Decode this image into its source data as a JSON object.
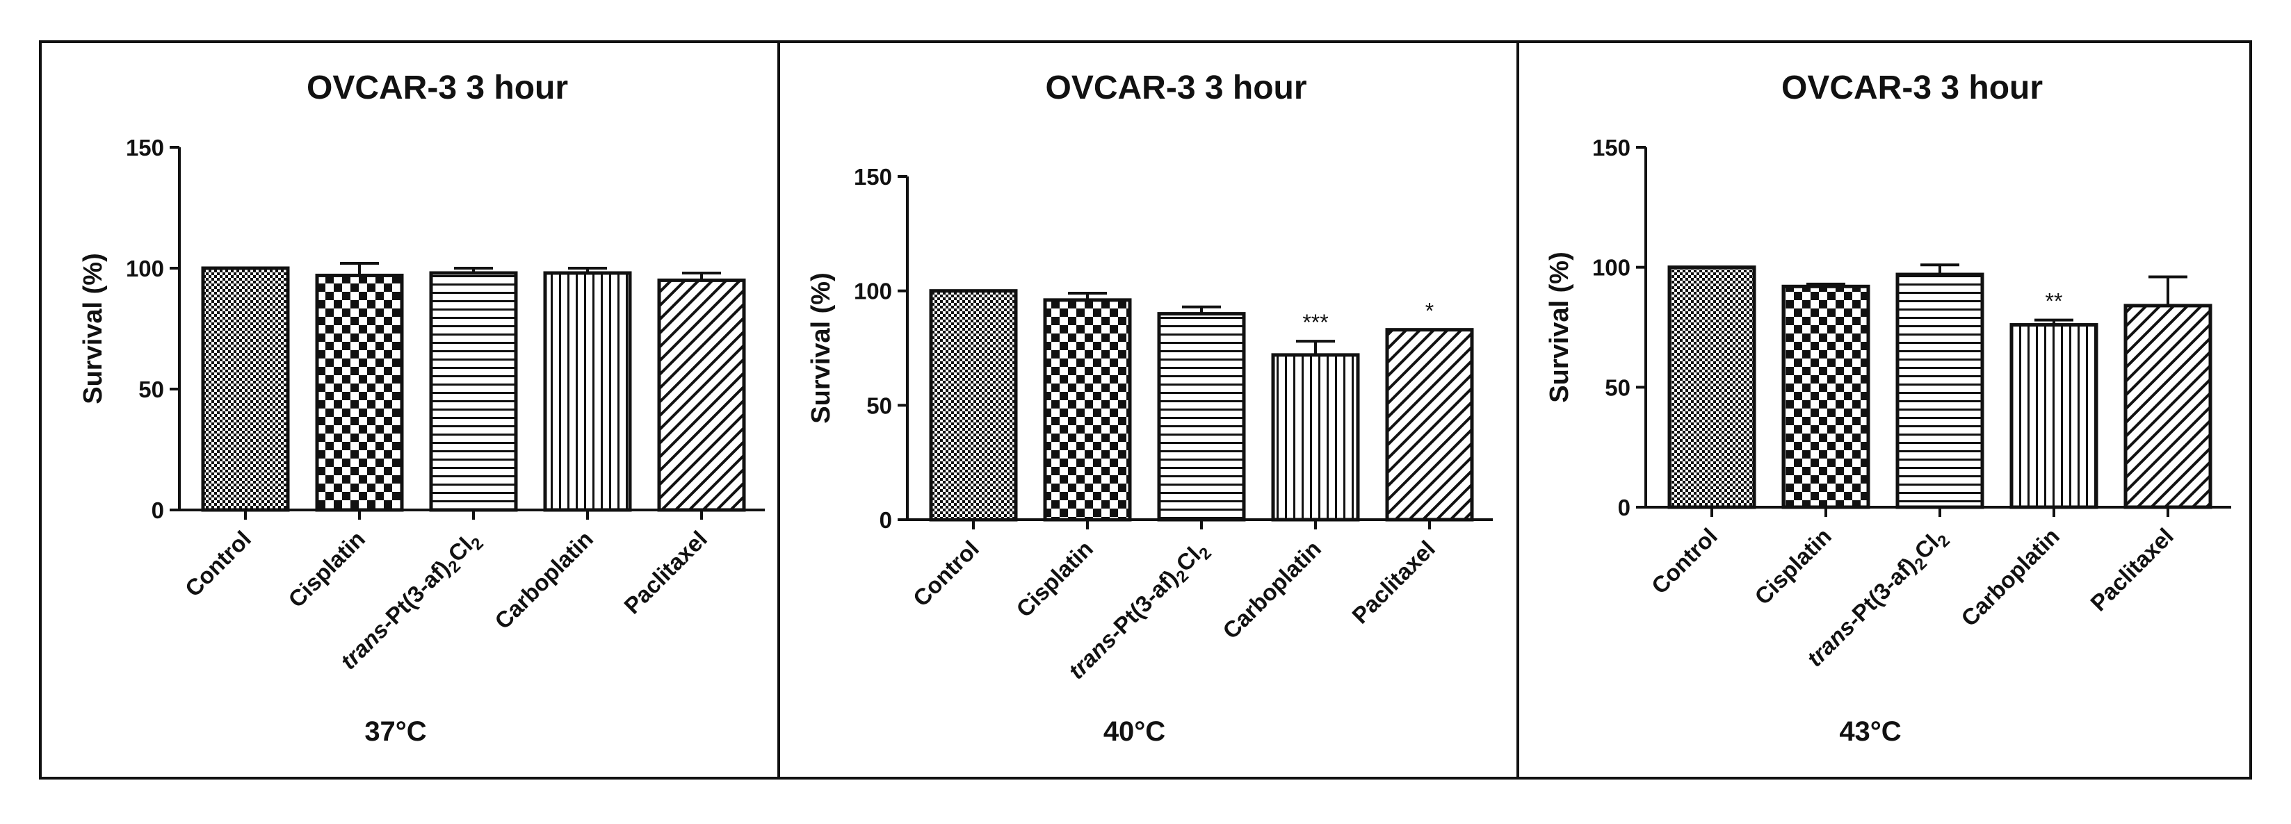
{
  "chart_data": [
    {
      "type": "bar",
      "title": "OVCAR-3 3 hour",
      "condition": "37°C",
      "xlabel": "",
      "ylabel": "Survival (%)",
      "ylim": [
        0,
        150
      ],
      "yticks": [
        "0",
        "50",
        "100",
        "150"
      ],
      "categories": [
        "Control",
        "Cisplatin",
        "trans-Pt(3-af)2Cl2",
        "Carboplatin",
        "Paclitaxel"
      ],
      "category_parts": [
        {
          "main": "Control"
        },
        {
          "main": "Cisplatin"
        },
        {
          "italic": "trans",
          "main": "-Pt(3-af)",
          "sub1": "2",
          "mid": "Cl",
          "sub2": "2"
        },
        {
          "main": "Carboplatin"
        },
        {
          "main": "Paclitaxel"
        }
      ],
      "values": [
        100,
        97,
        98,
        98,
        95
      ],
      "errors": [
        0,
        5,
        2,
        2,
        3
      ],
      "significance": [
        "",
        "",
        "",
        "",
        ""
      ],
      "patterns": [
        "dense-check",
        "checker",
        "horizontal",
        "vertical",
        "diagonal"
      ]
    },
    {
      "type": "bar",
      "title": "OVCAR-3 3 hour",
      "condition": "40°C",
      "xlabel": "",
      "ylabel": "Survival (%)",
      "ylim": [
        0,
        150
      ],
      "yticks": [
        "0",
        "50",
        "100",
        "150"
      ],
      "categories": [
        "Control",
        "Cisplatin",
        "trans-Pt(3-af)2Cl2",
        "Carboplatin",
        "Paclitaxel"
      ],
      "category_parts": [
        {
          "main": "Control"
        },
        {
          "main": "Cisplatin"
        },
        {
          "italic": "trans",
          "main": "-Pt(3-af)",
          "sub1": "2",
          "mid": "Cl",
          "sub2": "2"
        },
        {
          "main": "Carboplatin"
        },
        {
          "main": "Paclitaxel"
        }
      ],
      "values": [
        100,
        96,
        90,
        72,
        83
      ],
      "errors": [
        0,
        3,
        3,
        6,
        0
      ],
      "significance": [
        "",
        "",
        "",
        "***",
        "*"
      ],
      "patterns": [
        "dense-check",
        "checker",
        "horizontal",
        "vertical",
        "diagonal"
      ]
    },
    {
      "type": "bar",
      "title": "OVCAR-3 3 hour",
      "condition": "43°C",
      "xlabel": "",
      "ylabel": "Survival (%)",
      "ylim": [
        0,
        150
      ],
      "yticks": [
        "0",
        "50",
        "100",
        "150"
      ],
      "categories": [
        "Control",
        "Cisplatin",
        "trans-Pt(3-af)2Cl2",
        "Carboplatin",
        "Paclitaxel"
      ],
      "category_parts": [
        {
          "main": "Control"
        },
        {
          "main": "Cisplatin"
        },
        {
          "italic": "trans",
          "main": "-Pt(3-af)",
          "sub1": "2",
          "mid": "Cl",
          "sub2": "2"
        },
        {
          "main": "Carboplatin"
        },
        {
          "main": "Paclitaxel"
        }
      ],
      "values": [
        100,
        92,
        97,
        76,
        84
      ],
      "errors": [
        0,
        1,
        4,
        2,
        12
      ],
      "significance": [
        "",
        "",
        "",
        "**",
        ""
      ],
      "patterns": [
        "dense-check",
        "checker",
        "horizontal",
        "vertical",
        "diagonal"
      ]
    }
  ],
  "colors": {
    "ink": "#111111",
    "background": "#ffffff"
  }
}
